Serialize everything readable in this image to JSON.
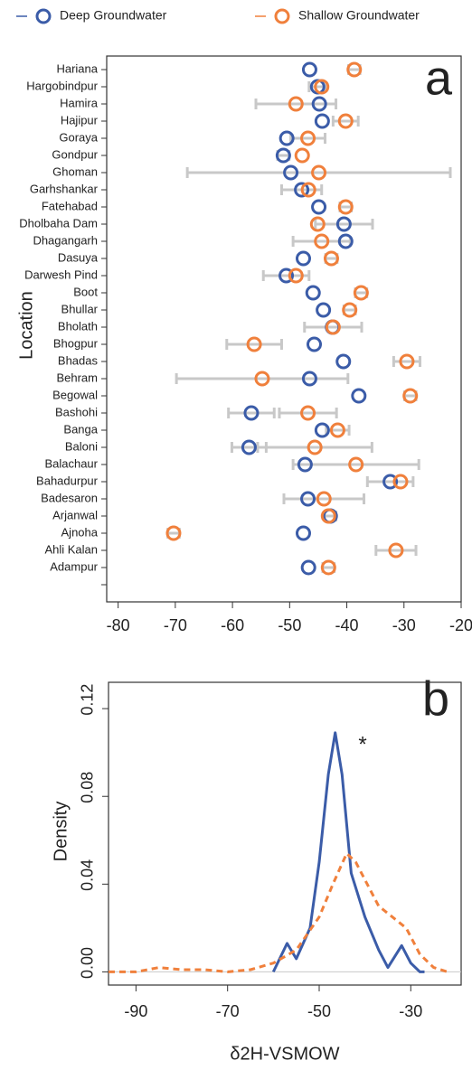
{
  "chart_data": [
    {
      "type": "dot",
      "y_label": "Location",
      "annotation": "a",
      "categories": [
        "Hariana",
        "Hargobindpur",
        "Hamira",
        "Hajipur",
        "Goraya",
        "Gondpur",
        "Ghoman",
        "Garhshankar",
        "Fatehabad",
        "Dholbaha Dam",
        "Dhagangarh",
        "Dasuya",
        "Darwesh Pind",
        "Boot",
        "Bhullar",
        "Bholath",
        "Bhogpur",
        "Bhadas",
        "Behram",
        "Begowal",
        "Bashohi",
        "Banga",
        "Baloni",
        "Balachaur",
        "Bahadurpur",
        "Badesaron",
        "Arjanwal",
        "Ajnoha",
        "Ahli Kalan",
        "Adampur",
        null
      ],
      "series": [
        {
          "name": "Deep Groundwater",
          "color": "#3b5ca8",
          "values": [
            -46.5,
            -45.1,
            -44.8,
            -44.3,
            -50.5,
            -51.1,
            -49.8,
            -47.9,
            -44.9,
            -40.5,
            -40.2,
            -47.6,
            -50.6,
            -45.9,
            -44.1,
            -42.5,
            -45.7,
            -40.6,
            -46.5,
            -37.9,
            -56.7,
            -44.3,
            -57.1,
            -47.3,
            -32.4,
            -46.8,
            -42.9,
            -47.6,
            null,
            -46.7,
            null
          ],
          "errors": [
            null,
            1.5,
            null,
            null,
            null,
            1,
            null,
            3.5,
            null,
            5,
            null,
            null,
            4,
            null,
            null,
            null,
            null,
            null,
            null,
            null,
            4,
            null,
            3,
            null,
            4,
            null,
            1,
            null,
            null,
            null,
            null
          ]
        },
        {
          "name": "Shallow Groundwater",
          "color": "#f0803c",
          "values": [
            -38.7,
            -44.4,
            -48.9,
            -40.2,
            -46.8,
            -47.8,
            -44.9,
            -46.7,
            -40.2,
            -45.1,
            -44.4,
            -42.7,
            -48.9,
            -37.5,
            -39.5,
            -42.4,
            -56.2,
            -29.5,
            -54.8,
            -28.9,
            -46.8,
            -41.6,
            -45.6,
            -38.4,
            -30.6,
            -44.0,
            -43.2,
            -70.3,
            -31.4,
            -43.2,
            null
          ],
          "errors": [
            1,
            null,
            7,
            2.2,
            3,
            null,
            23,
            null,
            1,
            null,
            5,
            1,
            null,
            1,
            1,
            5,
            4.8,
            2.3,
            15,
            1,
            5,
            2,
            10,
            11,
            null,
            7,
            null,
            1,
            3.5,
            1,
            null
          ]
        }
      ],
      "error_color": "#c8c8c8",
      "xlim": [
        -82,
        -20
      ],
      "xticks": [
        -80,
        -70,
        -60,
        -50,
        -40,
        -30,
        -20
      ]
    },
    {
      "type": "line",
      "y_label": "Density",
      "x_label": "δ2H-VSMOW",
      "annotation": "b",
      "star": "*",
      "star_at": [
        -40.5,
        0.103
      ],
      "series": [
        {
          "name": "Deep Groundwater",
          "color": "#3b5ca8",
          "dash": false,
          "x": [
            -60,
            -57,
            -55,
            -52,
            -50,
            -48,
            -46.5,
            -45,
            -43,
            -40,
            -37,
            -35,
            -33.5,
            -32,
            -30,
            -28,
            -27
          ],
          "values": [
            0,
            0.013,
            0.006,
            0.02,
            0.05,
            0.09,
            0.109,
            0.09,
            0.045,
            0.025,
            0.01,
            0.002,
            0.007,
            0.012,
            0.004,
            0,
            0
          ]
        },
        {
          "name": "Shallow Groundwater",
          "color": "#f0803c",
          "dash": true,
          "x": [
            -96,
            -90,
            -85,
            -80,
            -75,
            -70,
            -65,
            -60,
            -55,
            -50,
            -47,
            -44,
            -42,
            -40,
            -37,
            -34,
            -31,
            -28,
            -25,
            -22
          ],
          "values": [
            0,
            0,
            0.002,
            0.001,
            0.001,
            0,
            0.001,
            0.004,
            0.01,
            0.025,
            0.04,
            0.054,
            0.05,
            0.042,
            0.03,
            0.025,
            0.02,
            0.008,
            0.002,
            0
          ]
        }
      ],
      "xlim": [
        -96,
        -19
      ],
      "xticks": [
        -90,
        -70,
        -50,
        -30
      ],
      "ylim": [
        -0.006,
        0.132
      ],
      "yticks": [
        {
          "value": 0,
          "label": "0.00"
        },
        0.04,
        0.08,
        0.12
      ]
    }
  ]
}
